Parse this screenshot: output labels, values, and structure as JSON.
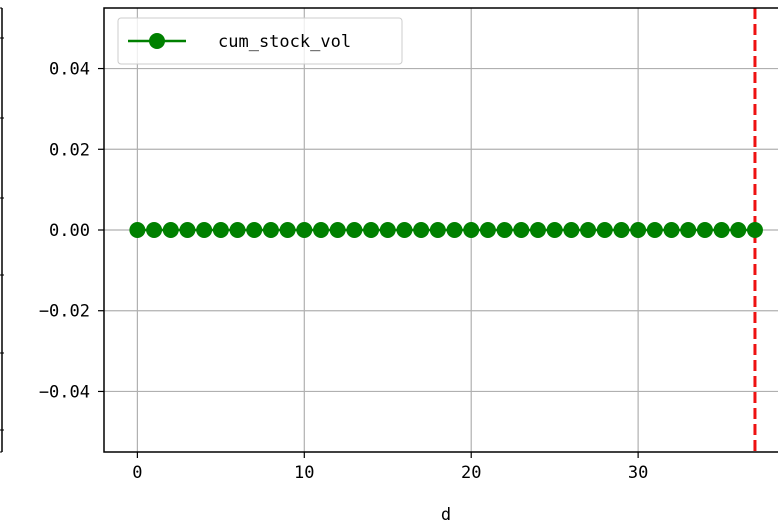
{
  "chart_data": {
    "type": "line",
    "title": "",
    "xlabel": "d",
    "ylabel": "",
    "xlim": [
      -2,
      38.5
    ],
    "ylim": [
      -0.055,
      0.055
    ],
    "x_ticks": [
      0,
      10,
      20,
      30
    ],
    "x_tick_labels": [
      "0",
      "10",
      "20",
      "30"
    ],
    "y_ticks": [
      0.04,
      0.02,
      0.0,
      -0.02,
      -0.04
    ],
    "y_tick_labels": [
      "0.04",
      "0.02",
      "0.00",
      "−0.02",
      "−0.04"
    ],
    "grid": true,
    "legend_position": "top-left",
    "series": [
      {
        "name": "cum_stock_vol",
        "color": "#008000",
        "marker": "circle",
        "x": [
          0,
          1,
          2,
          3,
          4,
          5,
          6,
          7,
          8,
          9,
          10,
          11,
          12,
          13,
          14,
          15,
          16,
          17,
          18,
          19,
          20,
          21,
          22,
          23,
          24,
          25,
          26,
          27,
          28,
          29,
          30,
          31,
          32,
          33,
          34,
          35,
          36,
          37
        ],
        "values": [
          0,
          0,
          0,
          0,
          0,
          0,
          0,
          0,
          0,
          0,
          0,
          0,
          0,
          0,
          0,
          0,
          0,
          0,
          0,
          0,
          0,
          0,
          0,
          0,
          0,
          0,
          0,
          0,
          0,
          0,
          0,
          0,
          0,
          0,
          0,
          0,
          0,
          0
        ]
      }
    ],
    "vertical_line": {
      "x": 37,
      "color": "#ee1111",
      "style": "dashed"
    }
  }
}
